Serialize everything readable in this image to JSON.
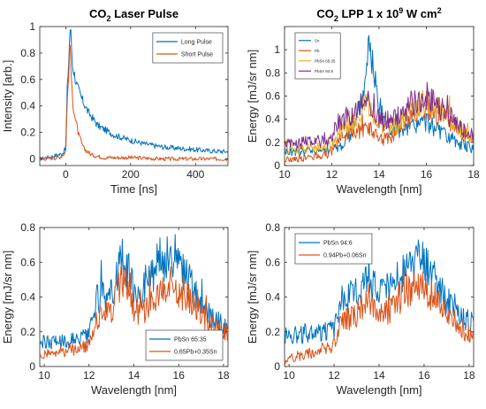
{
  "colors": {
    "blue": "#0072BD",
    "orange": "#D95319",
    "yellow": "#EDB120",
    "purple": "#7E2F8E"
  },
  "chart_data": [
    {
      "type": "line",
      "panel": "top-left",
      "title": "CO2 Laser Pulse",
      "title_main": "CO",
      "title_sub": "2",
      "title_rest": " Laser Pulse",
      "xlabel": "Time [ns]",
      "ylabel": "Intensity [arb.]",
      "xlim": [
        -80,
        500
      ],
      "ylim": [
        -0.05,
        1.0
      ],
      "xticks": [
        0,
        200,
        400
      ],
      "yticks": [
        0,
        0.2,
        0.4,
        0.6,
        0.8,
        1
      ],
      "ytick_labels": [
        "0",
        "0.2",
        "0.4",
        "0.6",
        "0.8",
        "1"
      ],
      "legend_position": "top-right",
      "legend_font": 7,
      "series": [
        {
          "name": "Long Pulse",
          "color": "blue",
          "points": [
            [
              -80,
              0.0
            ],
            [
              -40,
              0.02
            ],
            [
              -10,
              0.04
            ],
            [
              0,
              0.08
            ],
            [
              5,
              0.55
            ],
            [
              10,
              0.78
            ],
            [
              13,
              1.0
            ],
            [
              17,
              0.92
            ],
            [
              20,
              0.72
            ],
            [
              25,
              0.66
            ],
            [
              35,
              0.55
            ],
            [
              50,
              0.45
            ],
            [
              70,
              0.35
            ],
            [
              100,
              0.25
            ],
            [
              150,
              0.18
            ],
            [
              200,
              0.14
            ],
            [
              250,
              0.11
            ],
            [
              300,
              0.09
            ],
            [
              350,
              0.08
            ],
            [
              400,
              0.07
            ],
            [
              450,
              0.06
            ],
            [
              500,
              0.055
            ]
          ]
        },
        {
          "name": "Short Pulse",
          "color": "orange",
          "points": [
            [
              -80,
              0.0
            ],
            [
              -20,
              0.01
            ],
            [
              0,
              0.05
            ],
            [
              5,
              0.45
            ],
            [
              10,
              0.7
            ],
            [
              13,
              0.92
            ],
            [
              17,
              0.6
            ],
            [
              22,
              0.42
            ],
            [
              30,
              0.3
            ],
            [
              40,
              0.18
            ],
            [
              55,
              0.08
            ],
            [
              80,
              0.03
            ],
            [
              120,
              0.01
            ],
            [
              200,
              0.01
            ],
            [
              300,
              0.0
            ],
            [
              400,
              0.0
            ],
            [
              500,
              0.0
            ]
          ]
        }
      ]
    },
    {
      "type": "line",
      "panel": "top-right",
      "title": "CO2 LPP 1 x 10^9 W cm^2",
      "title_main": "CO",
      "title_sub": "2",
      "title_mid": " LPP 1 x 10",
      "title_sup": "9",
      "title_end": " W cm",
      "title_sup2": "2",
      "xlabel": "Wavelength [nm]",
      "ylabel": "Energy [mJ/sr nm]",
      "xlim": [
        10,
        18
      ],
      "ylim": [
        0,
        1.2
      ],
      "xticks": [
        10,
        12,
        14,
        16,
        18
      ],
      "yticks": [
        0,
        0.2,
        0.4,
        0.6,
        0.8,
        1
      ],
      "ytick_labels": [
        "0",
        "0.2",
        "0.4",
        "0.6",
        "0.8",
        "1"
      ],
      "legend_position": "top-left",
      "legend_font": 4.5,
      "series": [
        {
          "name": "Sn",
          "color": "blue",
          "points": [
            [
              10,
              0.12
            ],
            [
              11,
              0.13
            ],
            [
              12,
              0.14
            ],
            [
              12.5,
              0.18
            ],
            [
              13,
              0.35
            ],
            [
              13.4,
              0.7
            ],
            [
              13.5,
              1.05
            ],
            [
              13.7,
              0.95
            ],
            [
              14,
              0.5
            ],
            [
              14.5,
              0.3
            ],
            [
              15,
              0.28
            ],
            [
              15.5,
              0.35
            ],
            [
              16,
              0.38
            ],
            [
              16.5,
              0.3
            ],
            [
              17,
              0.22
            ],
            [
              17.5,
              0.18
            ],
            [
              18,
              0.15
            ]
          ]
        },
        {
          "name": "Pb",
          "color": "orange",
          "points": [
            [
              10,
              0.05
            ],
            [
              11,
              0.07
            ],
            [
              12,
              0.1
            ],
            [
              12.3,
              0.25
            ],
            [
              13,
              0.28
            ],
            [
              13.5,
              0.35
            ],
            [
              14,
              0.22
            ],
            [
              14.5,
              0.25
            ],
            [
              15,
              0.35
            ],
            [
              15.5,
              0.45
            ],
            [
              16,
              0.5
            ],
            [
              16.5,
              0.45
            ],
            [
              17,
              0.35
            ],
            [
              17.5,
              0.28
            ],
            [
              18,
              0.22
            ]
          ]
        },
        {
          "name": "PbSn 65:35",
          "color": "yellow",
          "points": [
            [
              10,
              0.14
            ],
            [
              11,
              0.15
            ],
            [
              12,
              0.17
            ],
            [
              12.3,
              0.3
            ],
            [
              13,
              0.38
            ],
            [
              13.5,
              0.55
            ],
            [
              14,
              0.35
            ],
            [
              14.5,
              0.3
            ],
            [
              15,
              0.4
            ],
            [
              15.5,
              0.5
            ],
            [
              16,
              0.55
            ],
            [
              16.5,
              0.5
            ],
            [
              17,
              0.4
            ],
            [
              17.5,
              0.3
            ],
            [
              18,
              0.22
            ]
          ]
        },
        {
          "name": "PbSn 94:6",
          "color": "purple",
          "points": [
            [
              10,
              0.18
            ],
            [
              11,
              0.2
            ],
            [
              12,
              0.22
            ],
            [
              12.3,
              0.38
            ],
            [
              13,
              0.45
            ],
            [
              13.5,
              0.6
            ],
            [
              14,
              0.38
            ],
            [
              14.5,
              0.4
            ],
            [
              15,
              0.45
            ],
            [
              15.5,
              0.55
            ],
            [
              16,
              0.6
            ],
            [
              16.5,
              0.52
            ],
            [
              17,
              0.42
            ],
            [
              17.5,
              0.3
            ],
            [
              18,
              0.25
            ]
          ]
        }
      ]
    },
    {
      "type": "line",
      "panel": "bottom-left",
      "xlabel": "Wavelength [nm]",
      "ylabel": "Energy [mJ/sr nm]",
      "xlim": [
        9.8,
        18.2
      ],
      "ylim": [
        0,
        0.8
      ],
      "xticks": [
        10,
        12,
        14,
        16,
        18
      ],
      "yticks": [
        0,
        0.2,
        0.4,
        0.6,
        0.8
      ],
      "ytick_labels": [
        "0",
        "0.2",
        "0.4",
        "0.6",
        "0.8"
      ],
      "legend_position": "bottom-right",
      "legend_font": 7,
      "series": [
        {
          "name": "PbSn 65:35",
          "color": "blue",
          "points": [
            [
              9.8,
              0.14
            ],
            [
              11,
              0.15
            ],
            [
              12,
              0.17
            ],
            [
              12.3,
              0.38
            ],
            [
              13,
              0.42
            ],
            [
              13.5,
              0.62
            ],
            [
              14,
              0.44
            ],
            [
              14.5,
              0.45
            ],
            [
              15,
              0.55
            ],
            [
              15.5,
              0.62
            ],
            [
              16,
              0.58
            ],
            [
              16.5,
              0.48
            ],
            [
              17,
              0.35
            ],
            [
              17.5,
              0.28
            ],
            [
              18.2,
              0.22
            ]
          ]
        },
        {
          "name": "0.65Pb+0.35Sn",
          "color": "orange",
          "points": [
            [
              9.8,
              0.07
            ],
            [
              11,
              0.09
            ],
            [
              12,
              0.12
            ],
            [
              12.3,
              0.28
            ],
            [
              13,
              0.32
            ],
            [
              13.5,
              0.52
            ],
            [
              14,
              0.32
            ],
            [
              14.5,
              0.32
            ],
            [
              15,
              0.4
            ],
            [
              15.5,
              0.45
            ],
            [
              16,
              0.42
            ],
            [
              16.5,
              0.38
            ],
            [
              17,
              0.3
            ],
            [
              17.5,
              0.24
            ],
            [
              18.2,
              0.2
            ]
          ]
        }
      ]
    },
    {
      "type": "line",
      "panel": "bottom-right",
      "xlabel": "Wavelength [nm]",
      "ylabel": "Energy [mJ/sr nm]",
      "xlim": [
        9.8,
        18.2
      ],
      "ylim": [
        0,
        0.8
      ],
      "xticks": [
        10,
        12,
        14,
        16,
        18
      ],
      "yticks": [
        0,
        0.2,
        0.4,
        0.6,
        0.8
      ],
      "ytick_labels": [
        "0",
        "0.2",
        "0.4",
        "0.6",
        "0.8"
      ],
      "legend_position": "top-left",
      "legend_font": 7,
      "series": [
        {
          "name": "PbSn 94:6",
          "color": "blue",
          "points": [
            [
              9.8,
              0.18
            ],
            [
              11,
              0.19
            ],
            [
              12,
              0.21
            ],
            [
              12.3,
              0.38
            ],
            [
              13,
              0.42
            ],
            [
              13.5,
              0.55
            ],
            [
              14,
              0.42
            ],
            [
              14.5,
              0.45
            ],
            [
              15,
              0.52
            ],
            [
              15.5,
              0.58
            ],
            [
              16,
              0.6
            ],
            [
              16.5,
              0.5
            ],
            [
              17,
              0.38
            ],
            [
              17.5,
              0.3
            ],
            [
              18.2,
              0.24
            ]
          ]
        },
        {
          "name": "0.94Pb+0.06Sn",
          "color": "orange",
          "points": [
            [
              9.8,
              0.04
            ],
            [
              11,
              0.08
            ],
            [
              12,
              0.12
            ],
            [
              12.3,
              0.25
            ],
            [
              13,
              0.3
            ],
            [
              13.5,
              0.4
            ],
            [
              14,
              0.3
            ],
            [
              14.5,
              0.32
            ],
            [
              15,
              0.4
            ],
            [
              15.5,
              0.45
            ],
            [
              16,
              0.45
            ],
            [
              16.5,
              0.4
            ],
            [
              17,
              0.3
            ],
            [
              17.5,
              0.22
            ],
            [
              18.2,
              0.18
            ]
          ]
        }
      ]
    }
  ]
}
